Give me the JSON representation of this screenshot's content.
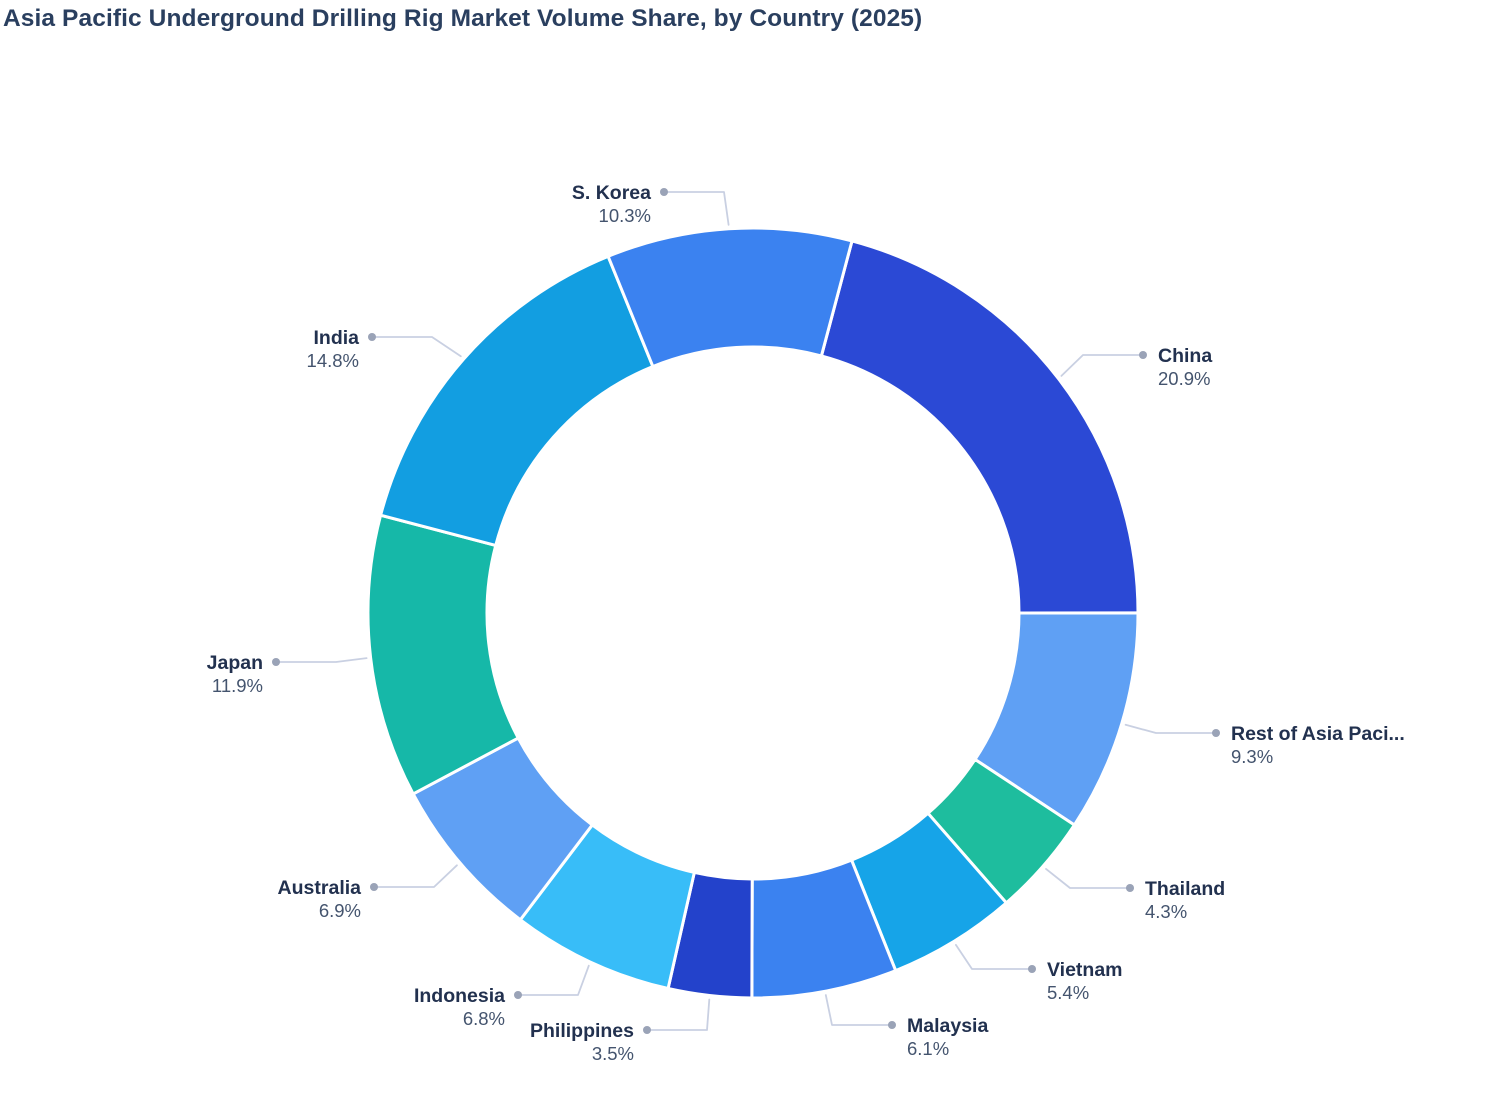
{
  "title": "Asia Pacific Underground Drilling Rig Market Volume Share, by Country (2025)",
  "chart_data": {
    "type": "pie",
    "subtype": "donut",
    "title": "Asia Pacific Underground Drilling Rig Market Volume Share, by Country (2025)",
    "unit": "%",
    "total": 100.2,
    "start_angle_clockwise_from_north_deg": 14.9,
    "direction": "clockwise",
    "legend_position": "none",
    "label_style": "outside-callouts-with-dots",
    "segments": [
      {
        "label": "China",
        "value": 20.9,
        "percent_label": "20.9%",
        "color": "#2B49D5"
      },
      {
        "label": "Rest of Asia Paci...",
        "value": 9.3,
        "percent_label": "9.3%",
        "color": "#5FA0F4"
      },
      {
        "label": "Thailand",
        "value": 4.3,
        "percent_label": "4.3%",
        "color": "#1EBD9E"
      },
      {
        "label": "Vietnam",
        "value": 5.4,
        "percent_label": "5.4%",
        "color": "#16A4E8"
      },
      {
        "label": "Malaysia",
        "value": 6.1,
        "percent_label": "6.1%",
        "color": "#3B82F0"
      },
      {
        "label": "Philippines",
        "value": 3.5,
        "percent_label": "3.5%",
        "color": "#2342CB"
      },
      {
        "label": "Indonesia",
        "value": 6.8,
        "percent_label": "6.8%",
        "color": "#38BDF8"
      },
      {
        "label": "Australia",
        "value": 6.9,
        "percent_label": "6.9%",
        "color": "#5FA0F4"
      },
      {
        "label": "Japan",
        "value": 11.9,
        "percent_label": "11.9%",
        "color": "#16B8A8"
      },
      {
        "label": "India",
        "value": 14.8,
        "percent_label": "14.8%",
        "color": "#129EE1"
      },
      {
        "label": "S. Korea",
        "value": 10.3,
        "percent_label": "10.3%",
        "color": "#3B82F0"
      }
    ]
  },
  "styles": {
    "title_color": "#2A3F5F",
    "label_name_color": "#22314F",
    "label_percent_color": "#44546E",
    "leader_line_color": "#C9D0E2",
    "leader_dot_color": "#9AA3B7",
    "slice_separator_color": "#FFFFFF",
    "background_color": "#FFFFFF"
  }
}
